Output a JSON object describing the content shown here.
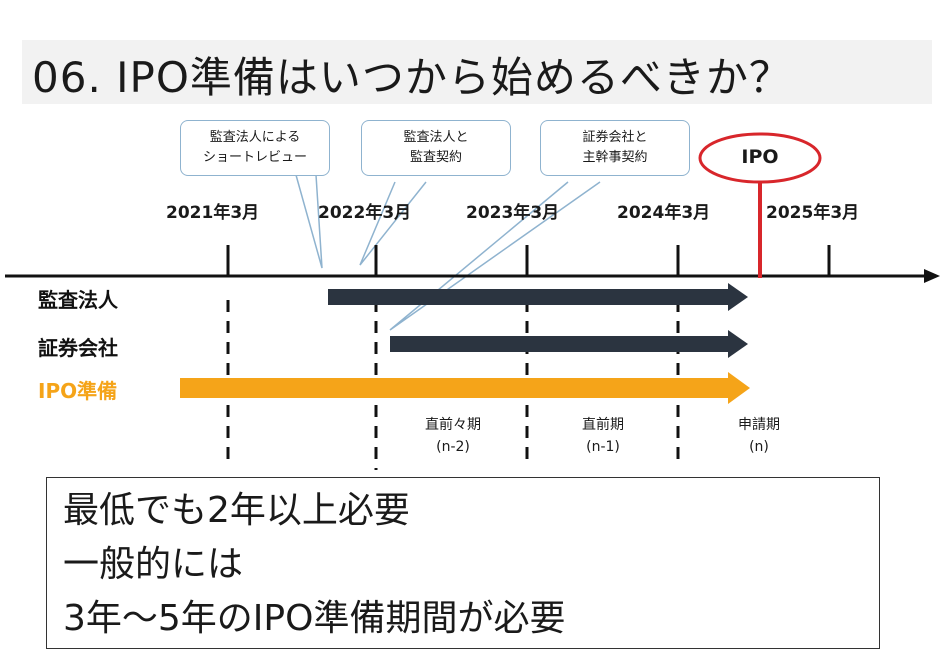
{
  "title": "06.  IPO準備はいつから始めるべきか？",
  "callouts": [
    {
      "line1": "監査法人による",
      "line2": "ショートレビュー"
    },
    {
      "line1": "監査法人と",
      "line2": "監査契約"
    },
    {
      "line1": "証券会社と",
      "line2": "主幹事契約"
    }
  ],
  "ipo_marker": "IPO",
  "years": [
    "2021年3月",
    "2022年3月",
    "2023年3月",
    "2024年3月",
    "2025年3月"
  ],
  "rows": [
    {
      "label": "監査法人",
      "color": "#2b3440"
    },
    {
      "label": "証券会社",
      "color": "#2b3440"
    },
    {
      "label": "IPO準備",
      "color": "#f5a419"
    }
  ],
  "periods": [
    {
      "name": "直前々期",
      "code": "(n-2)"
    },
    {
      "name": "直前期",
      "code": "(n-1)"
    },
    {
      "name": "申請期",
      "code": "(n)"
    }
  ],
  "note": {
    "line1": "最低でも2年以上必要",
    "line2": "一般的には",
    "line3": "3年～5年のIPO準備期間が必要"
  },
  "colors": {
    "ipo_red": "#d8262b",
    "callout_border": "#8fb3cf"
  }
}
